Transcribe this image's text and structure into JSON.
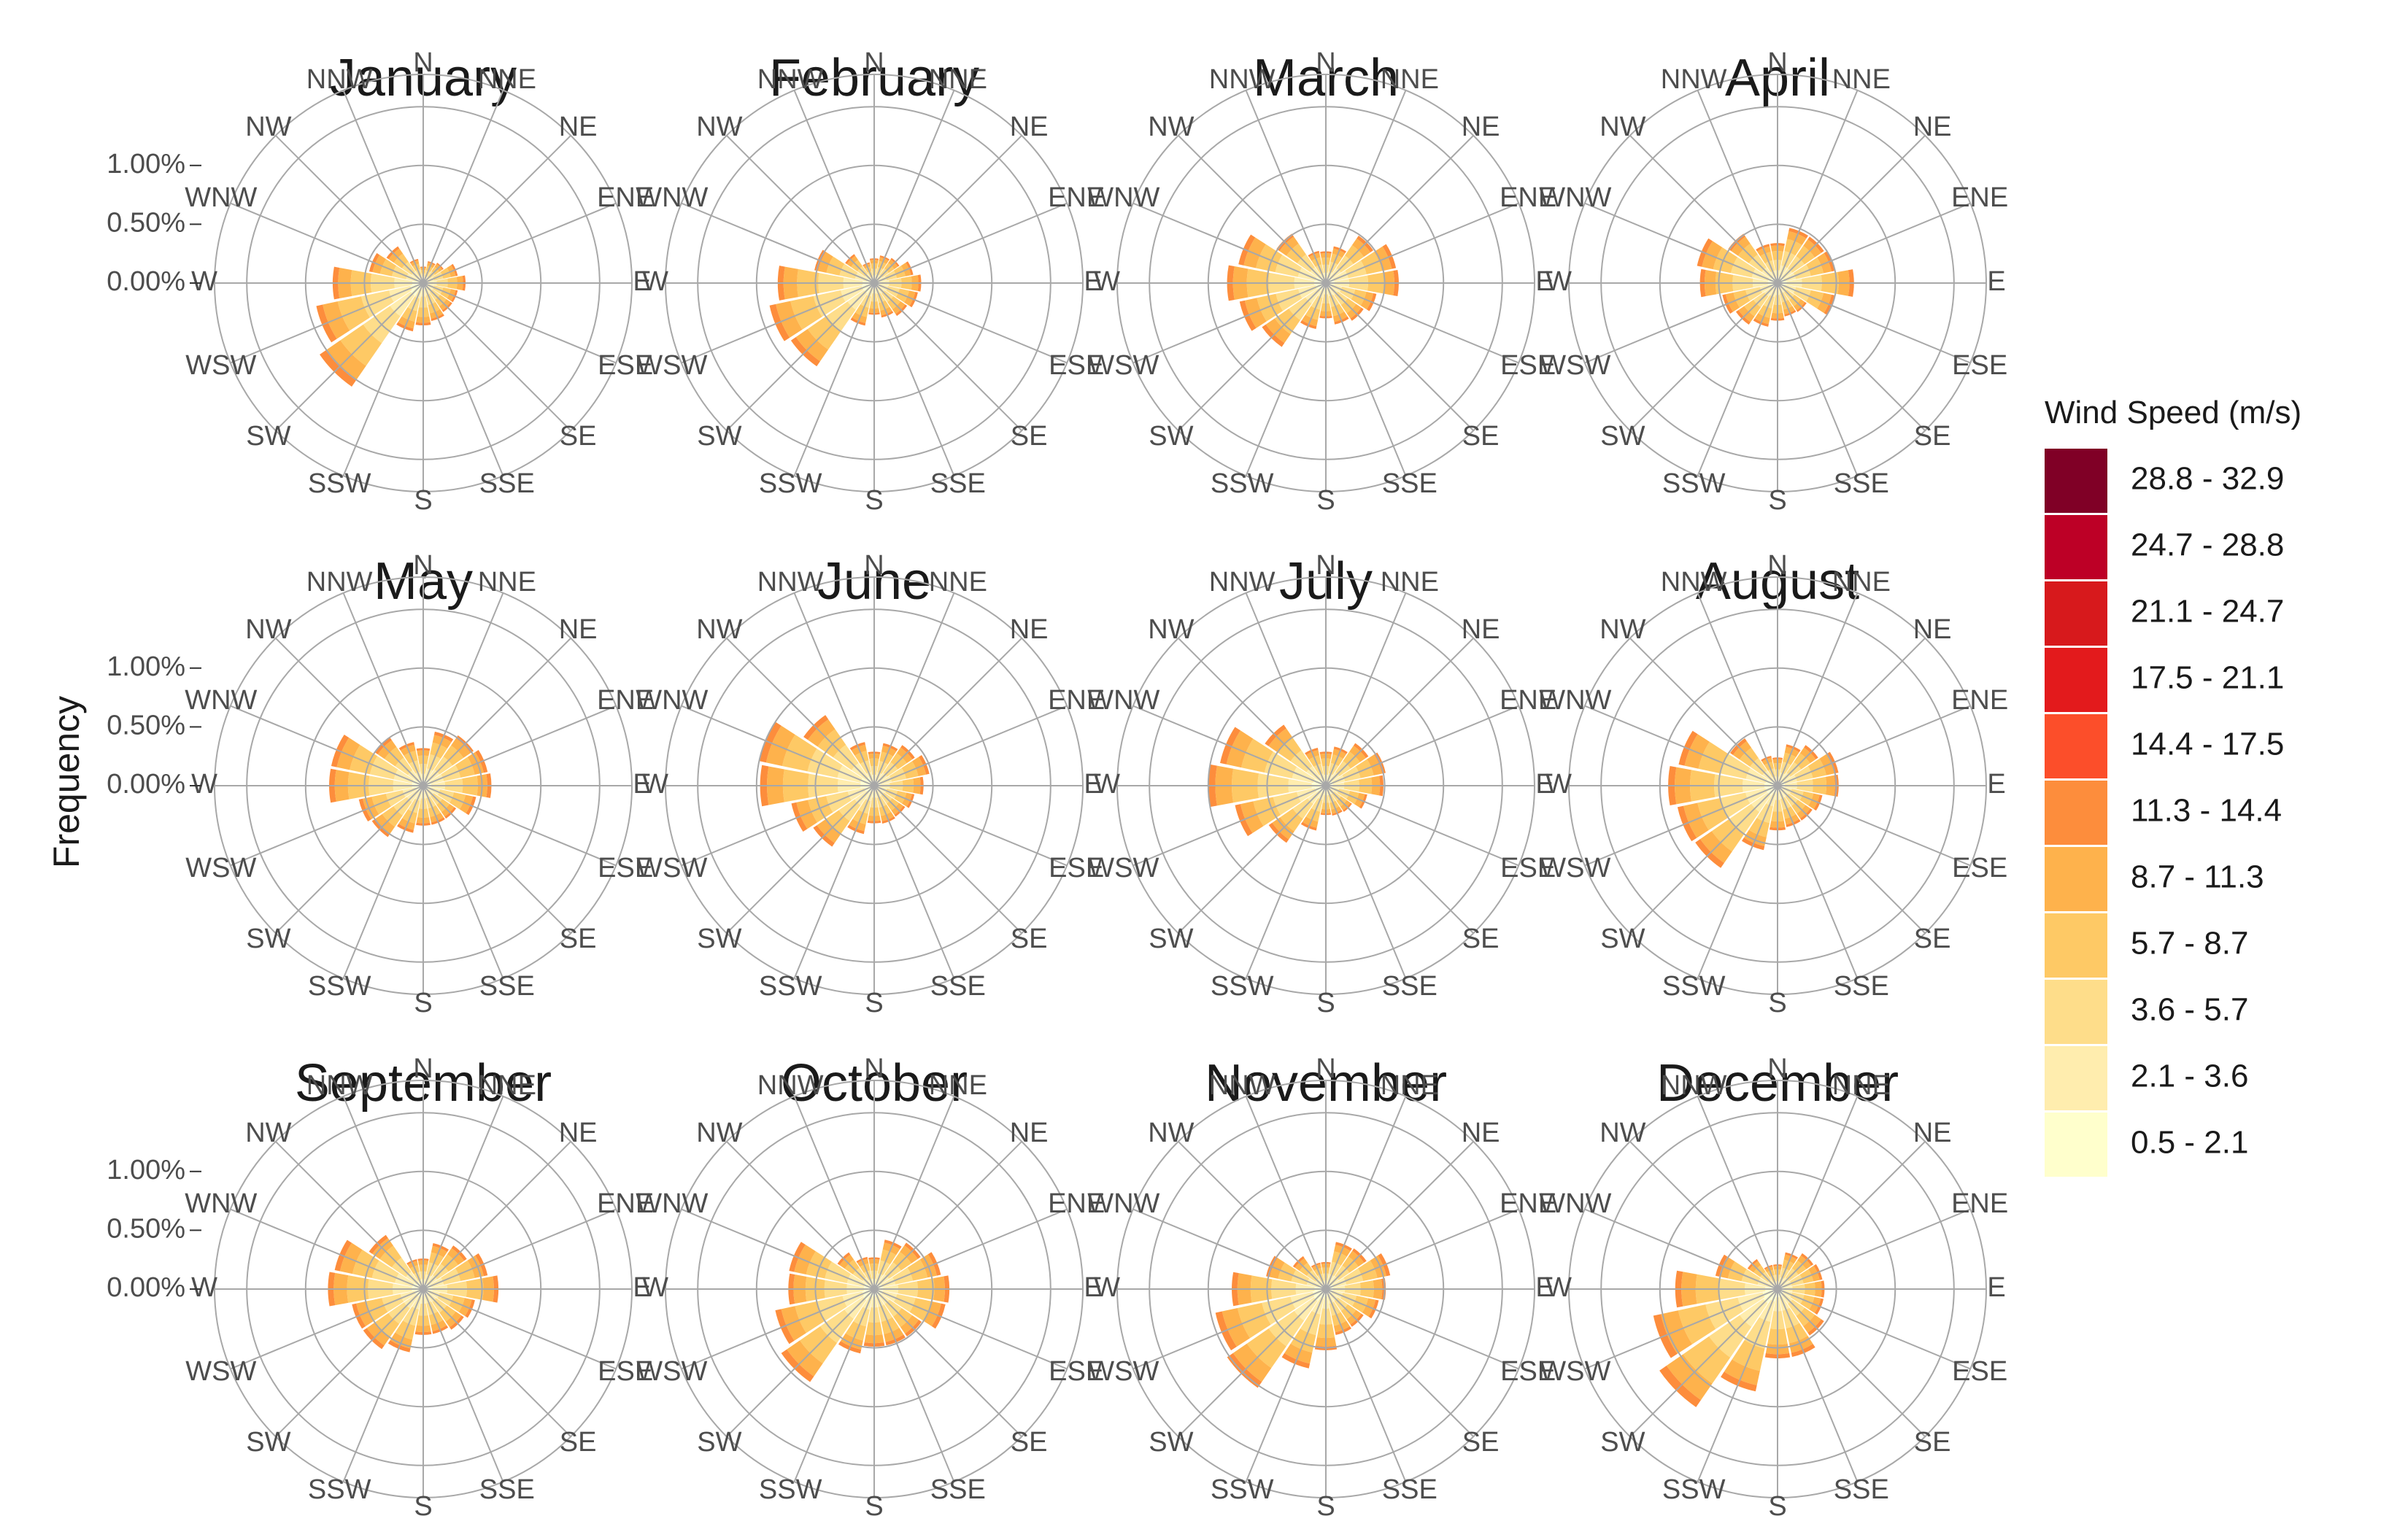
{
  "chart_data": {
    "type": "wind-rose",
    "ylabel": "Frequency",
    "y_tick_labels": [
      "1.00%",
      "0.50%",
      "0.00%"
    ],
    "directions": [
      "N",
      "NNE",
      "NE",
      "ENE",
      "E",
      "ESE",
      "SE",
      "SSE",
      "S",
      "SSW",
      "SW",
      "WSW",
      "W",
      "WNW",
      "NW",
      "NNW"
    ],
    "legend": {
      "title": "Wind Speed (m/s)",
      "bins": [
        "28.8 - 32.9",
        "24.7 - 28.8",
        "21.1 - 24.7",
        "17.5 - 21.1",
        "14.4 - 17.5",
        "11.3 - 14.4",
        "8.7 - 11.3",
        "5.7 - 8.7",
        "3.6 - 5.7",
        "2.1 - 3.6",
        "0.5 - 2.1"
      ],
      "colors": [
        "#800026",
        "#bd0026",
        "#d7191c",
        "#e31a1c",
        "#fc4e2a",
        "#fd8d3c",
        "#feb24c",
        "#fec965",
        "#fedd8a",
        "#ffedae",
        "#ffffcc"
      ]
    },
    "panels": [
      {
        "month": "January",
        "values": [
          0.14,
          0.19,
          0.21,
          0.3,
          0.36,
          0.3,
          0.3,
          0.33,
          0.36,
          0.42,
          1.07,
          0.93,
          0.77,
          0.47,
          0.38,
          0.21
        ],
        "speed_bins": [
          0.03,
          0.05,
          0.08,
          0.14,
          0.07
        ]
      },
      {
        "month": "February",
        "values": [
          0.21,
          0.24,
          0.26,
          0.34,
          0.4,
          0.38,
          0.34,
          0.3,
          0.27,
          0.37,
          0.86,
          0.91,
          0.82,
          0.52,
          0.3,
          0.18
        ],
        "speed_bins": [
          0.03,
          0.05,
          0.09,
          0.12,
          0.06
        ]
      },
      {
        "month": "March",
        "values": [
          0.27,
          0.32,
          0.49,
          0.61,
          0.62,
          0.44,
          0.39,
          0.36,
          0.3,
          0.4,
          0.66,
          0.75,
          0.84,
          0.76,
          0.51,
          0.28
        ],
        "speed_bins": [
          0.03,
          0.06,
          0.1,
          0.12,
          0.05
        ]
      },
      {
        "month": "April",
        "values": [
          0.34,
          0.48,
          0.48,
          0.5,
          0.65,
          0.5,
          0.3,
          0.29,
          0.32,
          0.38,
          0.43,
          0.48,
          0.66,
          0.7,
          0.51,
          0.34
        ],
        "speed_bins": [
          0.03,
          0.06,
          0.1,
          0.1,
          0.04
        ]
      },
      {
        "month": "May",
        "values": [
          0.32,
          0.47,
          0.52,
          0.56,
          0.58,
          0.46,
          0.34,
          0.34,
          0.34,
          0.41,
          0.53,
          0.56,
          0.8,
          0.8,
          0.5,
          0.38
        ],
        "speed_bins": [
          0.03,
          0.06,
          0.1,
          0.1,
          0.03
        ]
      },
      {
        "month": "June",
        "values": [
          0.29,
          0.37,
          0.42,
          0.48,
          0.42,
          0.35,
          0.32,
          0.33,
          0.32,
          0.42,
          0.63,
          0.72,
          0.97,
          1.0,
          0.73,
          0.38
        ],
        "speed_bins": [
          0.03,
          0.06,
          0.1,
          0.1,
          0.03
        ]
      },
      {
        "month": "July",
        "values": [
          0.29,
          0.34,
          0.44,
          0.52,
          0.49,
          0.36,
          0.27,
          0.26,
          0.25,
          0.39,
          0.59,
          0.79,
          1.0,
          0.92,
          0.63,
          0.33
        ],
        "speed_bins": [
          0.03,
          0.06,
          0.1,
          0.1,
          0.03
        ]
      },
      {
        "month": "August",
        "values": [
          0.24,
          0.36,
          0.42,
          0.53,
          0.52,
          0.39,
          0.36,
          0.36,
          0.38,
          0.56,
          0.85,
          0.87,
          0.93,
          0.86,
          0.49,
          0.26
        ],
        "speed_bins": [
          0.03,
          0.06,
          0.1,
          0.1,
          0.03
        ]
      },
      {
        "month": "September",
        "values": [
          0.26,
          0.4,
          0.45,
          0.56,
          0.64,
          0.45,
          0.42,
          0.39,
          0.39,
          0.55,
          0.62,
          0.62,
          0.81,
          0.77,
          0.56,
          0.26
        ],
        "speed_bins": [
          0.03,
          0.06,
          0.1,
          0.1,
          0.03
        ]
      },
      {
        "month": "October",
        "values": [
          0.27,
          0.43,
          0.48,
          0.58,
          0.64,
          0.62,
          0.49,
          0.49,
          0.49,
          0.56,
          0.96,
          0.86,
          0.73,
          0.74,
          0.38,
          0.28
        ],
        "speed_bins": [
          0.03,
          0.06,
          0.1,
          0.12,
          0.04
        ]
      },
      {
        "month": "November",
        "values": [
          0.23,
          0.41,
          0.42,
          0.56,
          0.51,
          0.46,
          0.39,
          0.4,
          0.52,
          0.69,
          1.02,
          0.96,
          0.8,
          0.52,
          0.34,
          0.23
        ],
        "speed_bins": [
          0.03,
          0.06,
          0.1,
          0.12,
          0.05
        ]
      },
      {
        "month": "December",
        "values": [
          0.21,
          0.32,
          0.37,
          0.39,
          0.4,
          0.4,
          0.48,
          0.59,
          0.59,
          0.89,
          1.22,
          1.08,
          0.87,
          0.54,
          0.31,
          0.21
        ],
        "speed_bins": [
          0.03,
          0.06,
          0.1,
          0.14,
          0.06
        ]
      }
    ]
  }
}
